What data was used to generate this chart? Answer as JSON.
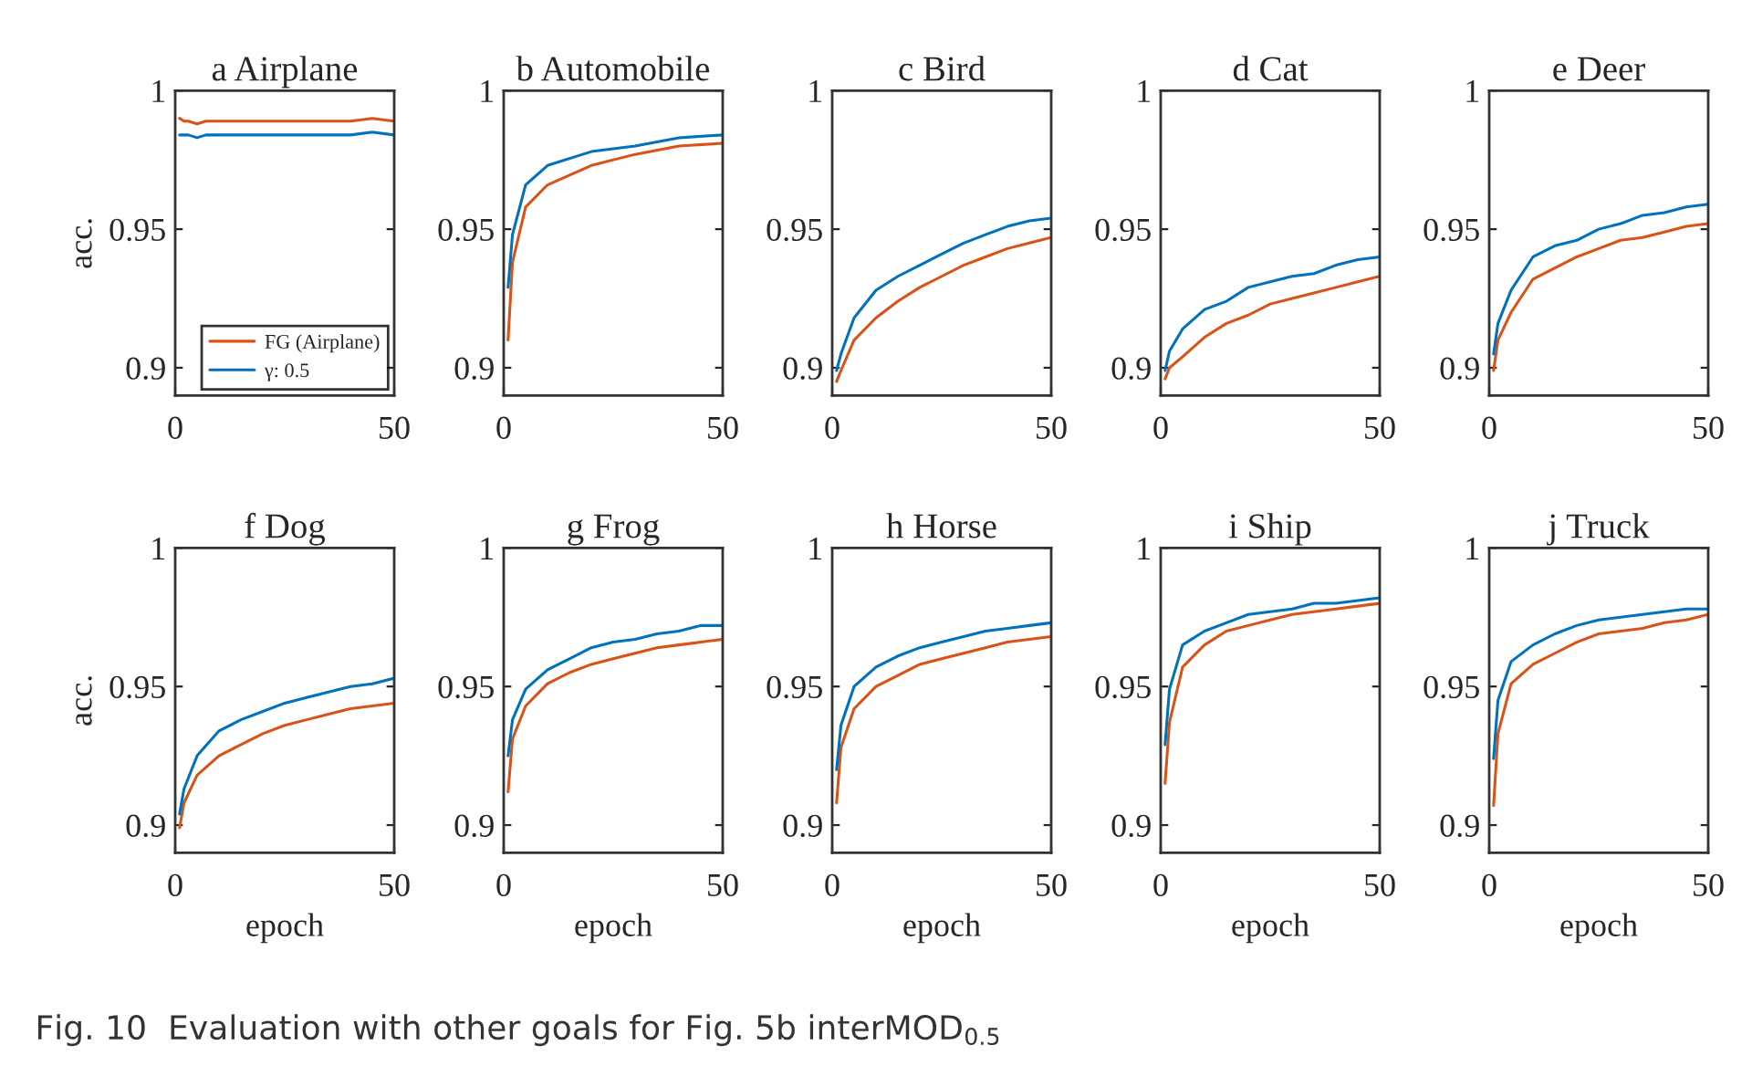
{
  "chart_data": [
    {
      "type": "line",
      "title": "a Airplane",
      "ylabel": "acc.",
      "x": [
        1,
        2,
        3,
        5,
        7,
        10,
        15,
        20,
        25,
        30,
        35,
        40,
        45,
        50
      ],
      "xlim": [
        0,
        50
      ],
      "xticks": [
        0,
        50
      ],
      "ylim": [
        0.89,
        1
      ],
      "yticks": [
        0.9,
        0.95,
        1
      ],
      "legend": "bottom right",
      "grid": false,
      "series": [
        {
          "name": "FG (Airplane)",
          "color": "#d95319",
          "values": [
            0.99,
            0.989,
            0.989,
            0.988,
            0.989,
            0.989,
            0.989,
            0.989,
            0.989,
            0.989,
            0.989,
            0.989,
            0.99,
            0.989
          ]
        },
        {
          "name": "γ: 0.5",
          "color": "#0072bd",
          "values": [
            0.984,
            0.984,
            0.984,
            0.983,
            0.984,
            0.984,
            0.984,
            0.984,
            0.984,
            0.984,
            0.984,
            0.984,
            0.985,
            0.984
          ]
        }
      ],
      "annotations": [
        "Fig. 10  Evaluation with other goals for Fig. 5b interMOD$_{0.5}$"
      ]
    },
    {
      "type": "line",
      "title": "b Automobile",
      "x": [
        1,
        2,
        5,
        10,
        20,
        30,
        40,
        50
      ],
      "xlim": [
        0,
        50
      ],
      "xticks": [
        0,
        50
      ],
      "ylim": [
        0.89,
        1
      ],
      "yticks": [
        0.9,
        0.95,
        1
      ],
      "series": [
        {
          "color": "#d95319",
          "values": [
            0.91,
            0.938,
            0.958,
            0.966,
            0.973,
            0.977,
            0.98,
            0.981
          ]
        },
        {
          "color": "#0072bd",
          "values": [
            0.929,
            0.948,
            0.966,
            0.973,
            0.978,
            0.98,
            0.983,
            0.984
          ]
        }
      ]
    },
    {
      "type": "line",
      "title": "c Bird",
      "x": [
        1,
        2,
        5,
        10,
        15,
        20,
        25,
        30,
        35,
        40,
        45,
        50
      ],
      "xlim": [
        0,
        50
      ],
      "xticks": [
        0,
        50
      ],
      "ylim": [
        0.89,
        1
      ],
      "yticks": [
        0.9,
        0.95,
        1
      ],
      "series": [
        {
          "color": "#d95319",
          "values": [
            0.895,
            0.899,
            0.91,
            0.918,
            0.924,
            0.929,
            0.933,
            0.937,
            0.94,
            0.943,
            0.945,
            0.947
          ]
        },
        {
          "color": "#0072bd",
          "values": [
            0.899,
            0.905,
            0.918,
            0.928,
            0.933,
            0.937,
            0.941,
            0.945,
            0.948,
            0.951,
            0.953,
            0.954
          ]
        }
      ]
    },
    {
      "type": "line",
      "title": "d Cat",
      "x": [
        1,
        2,
        5,
        10,
        15,
        20,
        25,
        30,
        35,
        40,
        45,
        50
      ],
      "xlim": [
        0,
        50
      ],
      "xticks": [
        0,
        50
      ],
      "ylim": [
        0.89,
        1
      ],
      "yticks": [
        0.9,
        0.95,
        1
      ],
      "series": [
        {
          "color": "#d95319",
          "values": [
            0.896,
            0.9,
            0.904,
            0.911,
            0.916,
            0.919,
            0.923,
            0.925,
            0.927,
            0.929,
            0.931,
            0.933
          ]
        },
        {
          "color": "#0072bd",
          "values": [
            0.899,
            0.906,
            0.914,
            0.921,
            0.924,
            0.929,
            0.931,
            0.933,
            0.934,
            0.937,
            0.939,
            0.94
          ]
        }
      ]
    },
    {
      "type": "line",
      "title": "e Deer",
      "x": [
        1,
        2,
        5,
        10,
        15,
        20,
        25,
        30,
        35,
        40,
        45,
        50
      ],
      "xlim": [
        0,
        50
      ],
      "xticks": [
        0,
        50
      ],
      "ylim": [
        0.89,
        1
      ],
      "yticks": [
        0.9,
        0.95,
        1
      ],
      "series": [
        {
          "color": "#d95319",
          "values": [
            0.899,
            0.91,
            0.92,
            0.932,
            0.936,
            0.94,
            0.943,
            0.946,
            0.947,
            0.949,
            0.951,
            0.952
          ]
        },
        {
          "color": "#0072bd",
          "values": [
            0.905,
            0.916,
            0.928,
            0.94,
            0.944,
            0.946,
            0.95,
            0.952,
            0.955,
            0.956,
            0.958,
            0.959
          ]
        }
      ]
    },
    {
      "type": "line",
      "title": "f Dog",
      "ylabel": "acc.",
      "xlabel": "epoch",
      "x": [
        1,
        2,
        5,
        10,
        15,
        20,
        25,
        30,
        35,
        40,
        45,
        50
      ],
      "xlim": [
        0,
        50
      ],
      "xticks": [
        0,
        50
      ],
      "ylim": [
        0.89,
        1
      ],
      "yticks": [
        0.9,
        0.95,
        1
      ],
      "series": [
        {
          "color": "#d95319",
          "values": [
            0.899,
            0.908,
            0.918,
            0.925,
            0.929,
            0.933,
            0.936,
            0.938,
            0.94,
            0.942,
            0.943,
            0.944
          ]
        },
        {
          "color": "#0072bd",
          "values": [
            0.904,
            0.913,
            0.925,
            0.934,
            0.938,
            0.941,
            0.944,
            0.946,
            0.948,
            0.95,
            0.951,
            0.953
          ]
        }
      ]
    },
    {
      "type": "line",
      "title": "g Frog",
      "xlabel": "epoch",
      "x": [
        1,
        2,
        5,
        10,
        15,
        20,
        25,
        30,
        35,
        40,
        45,
        50
      ],
      "xlim": [
        0,
        50
      ],
      "xticks": [
        0,
        50
      ],
      "ylim": [
        0.89,
        1
      ],
      "yticks": [
        0.9,
        0.95,
        1
      ],
      "series": [
        {
          "color": "#d95319",
          "values": [
            0.912,
            0.931,
            0.943,
            0.951,
            0.955,
            0.958,
            0.96,
            0.962,
            0.964,
            0.965,
            0.966,
            0.967
          ]
        },
        {
          "color": "#0072bd",
          "values": [
            0.925,
            0.938,
            0.949,
            0.956,
            0.96,
            0.964,
            0.966,
            0.967,
            0.969,
            0.97,
            0.972,
            0.972
          ]
        }
      ]
    },
    {
      "type": "line",
      "title": "h Horse",
      "xlabel": "epoch",
      "x": [
        1,
        2,
        5,
        10,
        15,
        20,
        25,
        30,
        35,
        40,
        45,
        50
      ],
      "xlim": [
        0,
        50
      ],
      "xticks": [
        0,
        50
      ],
      "ylim": [
        0.89,
        1
      ],
      "yticks": [
        0.9,
        0.95,
        1
      ],
      "series": [
        {
          "color": "#d95319",
          "values": [
            0.908,
            0.928,
            0.942,
            0.95,
            0.954,
            0.958,
            0.96,
            0.962,
            0.964,
            0.966,
            0.967,
            0.968
          ]
        },
        {
          "color": "#0072bd",
          "values": [
            0.92,
            0.936,
            0.95,
            0.957,
            0.961,
            0.964,
            0.966,
            0.968,
            0.97,
            0.971,
            0.972,
            0.973
          ]
        }
      ]
    },
    {
      "type": "line",
      "title": "i Ship",
      "xlabel": "epoch",
      "x": [
        1,
        2,
        5,
        10,
        15,
        20,
        25,
        30,
        35,
        40,
        45,
        50
      ],
      "xlim": [
        0,
        50
      ],
      "xticks": [
        0,
        50
      ],
      "ylim": [
        0.89,
        1
      ],
      "yticks": [
        0.9,
        0.95,
        1
      ],
      "series": [
        {
          "color": "#d95319",
          "values": [
            0.915,
            0.937,
            0.957,
            0.965,
            0.97,
            0.972,
            0.974,
            0.976,
            0.977,
            0.978,
            0.979,
            0.98
          ]
        },
        {
          "color": "#0072bd",
          "values": [
            0.929,
            0.949,
            0.965,
            0.97,
            0.973,
            0.976,
            0.977,
            0.978,
            0.98,
            0.98,
            0.981,
            0.982
          ]
        }
      ]
    },
    {
      "type": "line",
      "title": "j Truck",
      "xlabel": "epoch",
      "x": [
        1,
        2,
        5,
        10,
        15,
        20,
        25,
        30,
        35,
        40,
        45,
        50
      ],
      "xlim": [
        0,
        50
      ],
      "xticks": [
        0,
        50
      ],
      "ylim": [
        0.89,
        1
      ],
      "yticks": [
        0.9,
        0.95,
        1
      ],
      "series": [
        {
          "color": "#d95319",
          "values": [
            0.907,
            0.933,
            0.951,
            0.958,
            0.962,
            0.966,
            0.969,
            0.97,
            0.971,
            0.973,
            0.974,
            0.976
          ]
        },
        {
          "color": "#0072bd",
          "values": [
            0.924,
            0.945,
            0.959,
            0.965,
            0.969,
            0.972,
            0.974,
            0.975,
            0.976,
            0.977,
            0.978,
            0.978
          ]
        }
      ]
    }
  ]
}
